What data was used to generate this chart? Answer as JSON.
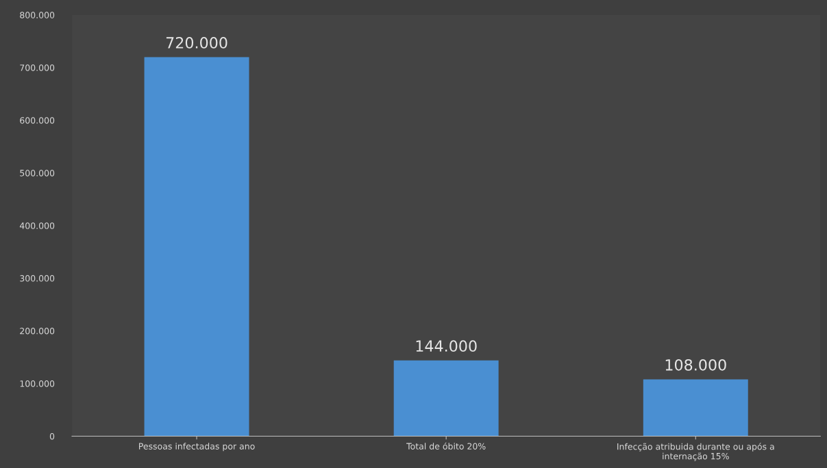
{
  "chart_data": {
    "type": "bar",
    "categories": [
      "Pessoas infectadas por ano",
      "Total de óbito 20%",
      "Infecção atribuida durante ou após a\ninternação 15%"
    ],
    "values": [
      720000,
      144000,
      108000
    ],
    "value_labels": [
      "720.000",
      "144.000",
      "108.000"
    ],
    "color": "#4a8fd2",
    "ylim": [
      0,
      800000
    ],
    "yticks": [
      {
        "value": 0,
        "label": "0"
      },
      {
        "value": 100000,
        "label": "100.000"
      },
      {
        "value": 200000,
        "label": "200.000"
      },
      {
        "value": 300000,
        "label": "300.000"
      },
      {
        "value": 400000,
        "label": "400.000"
      },
      {
        "value": 500000,
        "label": "500.000"
      },
      {
        "value": 600000,
        "label": "600.000"
      },
      {
        "value": 700000,
        "label": "700.000"
      },
      {
        "value": 800000,
        "label": "800.000"
      }
    ],
    "grid": false
  }
}
